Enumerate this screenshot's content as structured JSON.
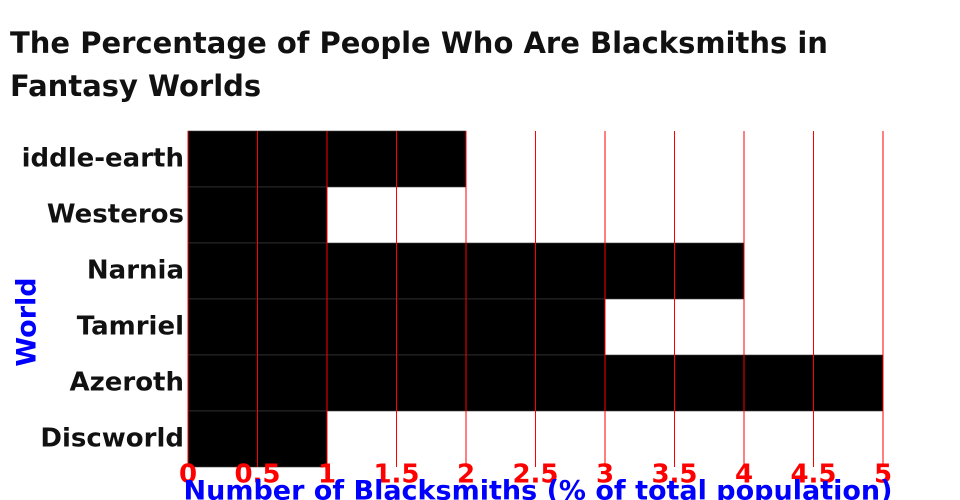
{
  "chart_data": {
    "type": "bar",
    "orientation": "horizontal",
    "title": "The Percentage of People Who Are Blacksmiths in Fantasy Worlds",
    "x_label": "Number of Blacksmiths (% of total population)",
    "y_label": "World",
    "categories": [
      "iddle-earth",
      "Westeros",
      "Narnia",
      "Tamriel",
      "Azeroth",
      "Discworld"
    ],
    "values": [
      2,
      1,
      4,
      3,
      5,
      1
    ],
    "color": "#000000",
    "grid_color": "#ff0000",
    "tick_color": "#ff0000",
    "axis_label_color": "#0000ff",
    "xlim": [
      0,
      5
    ],
    "xticks": [
      0,
      0.5,
      1,
      1.5,
      2,
      2.5,
      3,
      3.5,
      4,
      4.5,
      5
    ],
    "grid": true
  }
}
